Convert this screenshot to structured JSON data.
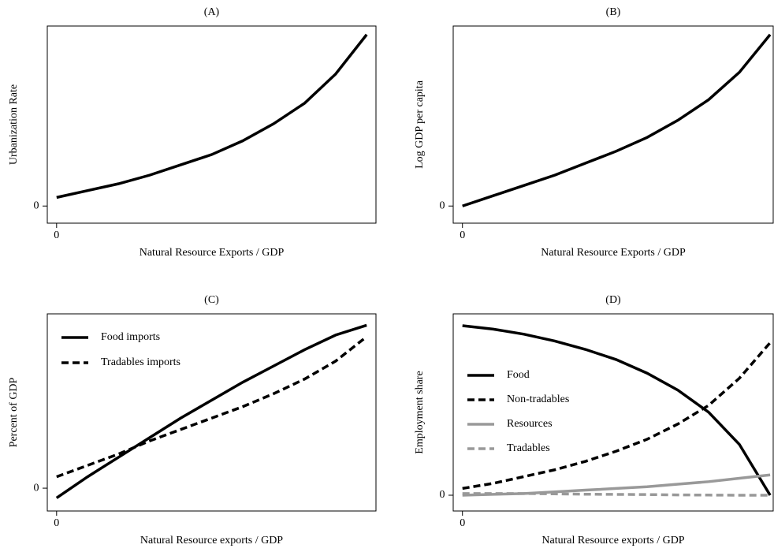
{
  "chart_data": [
    {
      "type": "line",
      "title": "(A)",
      "xlabel": "Natural Resource Exports / GDP",
      "ylabel": "Urbanization Rate",
      "x": [
        0,
        0.1,
        0.2,
        0.3,
        0.4,
        0.5,
        0.6,
        0.7,
        0.8,
        0.9,
        1
      ],
      "values": [
        0.05,
        0.09,
        0.13,
        0.18,
        0.24,
        0.3,
        0.38,
        0.48,
        0.6,
        0.77,
        1.0
      ],
      "color": "#000000",
      "xlim": [
        -0.03,
        1.03
      ],
      "ylim": [
        -0.1,
        1.05
      ],
      "xticks": [
        0
      ],
      "yticks": [
        0
      ]
    },
    {
      "type": "line",
      "title": "(B)",
      "xlabel": "Natural Resource Exports / GDP",
      "ylabel": "Log GDP per capita",
      "x": [
        0,
        0.1,
        0.2,
        0.3,
        0.4,
        0.5,
        0.6,
        0.7,
        0.8,
        0.9,
        1
      ],
      "values": [
        0,
        0.06,
        0.12,
        0.18,
        0.25,
        0.32,
        0.4,
        0.5,
        0.62,
        0.78,
        1.0
      ],
      "color": "#000000",
      "xlim": [
        -0.03,
        1.01
      ],
      "ylim": [
        -0.1,
        1.05
      ],
      "xticks": [
        0
      ],
      "yticks": [
        0
      ]
    },
    {
      "type": "line",
      "title": "(C)",
      "xlabel": "Natural Resource exports / GDP",
      "ylabel": "Percent of GDP",
      "x": [
        0,
        0.1,
        0.2,
        0.3,
        0.4,
        0.5,
        0.6,
        0.7,
        0.8,
        0.9,
        1
      ],
      "series": [
        {
          "name": "Food imports",
          "color": "#000000",
          "dash": "solid",
          "values": [
            -0.06,
            0.07,
            0.19,
            0.31,
            0.43,
            0.54,
            0.65,
            0.75,
            0.85,
            0.94,
            1.0
          ]
        },
        {
          "name": "Tradables imports",
          "color": "#000000",
          "dash": "dashed",
          "values": [
            0.07,
            0.14,
            0.21,
            0.29,
            0.36,
            0.43,
            0.5,
            0.58,
            0.67,
            0.78,
            0.93
          ]
        }
      ],
      "legend": "upper left",
      "xlim": [
        -0.03,
        1.03
      ],
      "ylim": [
        -0.14,
        1.07
      ],
      "xticks": [
        0
      ],
      "yticks": [
        0
      ]
    },
    {
      "type": "line",
      "title": "(D)",
      "xlabel": "Natural Resource exports / GDP",
      "ylabel": "Employment share",
      "x": [
        0,
        0.1,
        0.2,
        0.3,
        0.4,
        0.5,
        0.6,
        0.7,
        0.8,
        0.9,
        1
      ],
      "series": [
        {
          "name": "Food",
          "color": "#000000",
          "dash": "solid",
          "values": [
            1.0,
            0.98,
            0.95,
            0.91,
            0.86,
            0.8,
            0.72,
            0.62,
            0.49,
            0.3,
            0.0
          ]
        },
        {
          "name": "Non-tradables",
          "color": "#000000",
          "dash": "dashed",
          "values": [
            0.04,
            0.07,
            0.11,
            0.15,
            0.2,
            0.26,
            0.33,
            0.42,
            0.53,
            0.69,
            0.9
          ]
        },
        {
          "name": "Resources",
          "color": "#999999",
          "dash": "solid",
          "values": [
            0,
            0.005,
            0.01,
            0.02,
            0.03,
            0.04,
            0.05,
            0.065,
            0.08,
            0.1,
            0.12
          ]
        },
        {
          "name": "Tradables",
          "color": "#999999",
          "dash": "dashed",
          "values": [
            0.01,
            0.01,
            0.01,
            0.008,
            0.006,
            0.005,
            0.004,
            0.002,
            0.001,
            0,
            0
          ]
        }
      ],
      "legend": "center left",
      "xlim": [
        -0.03,
        1.01
      ],
      "ylim": [
        -0.093,
        1.07
      ],
      "xticks": [
        0
      ],
      "yticks": [
        0
      ]
    }
  ]
}
